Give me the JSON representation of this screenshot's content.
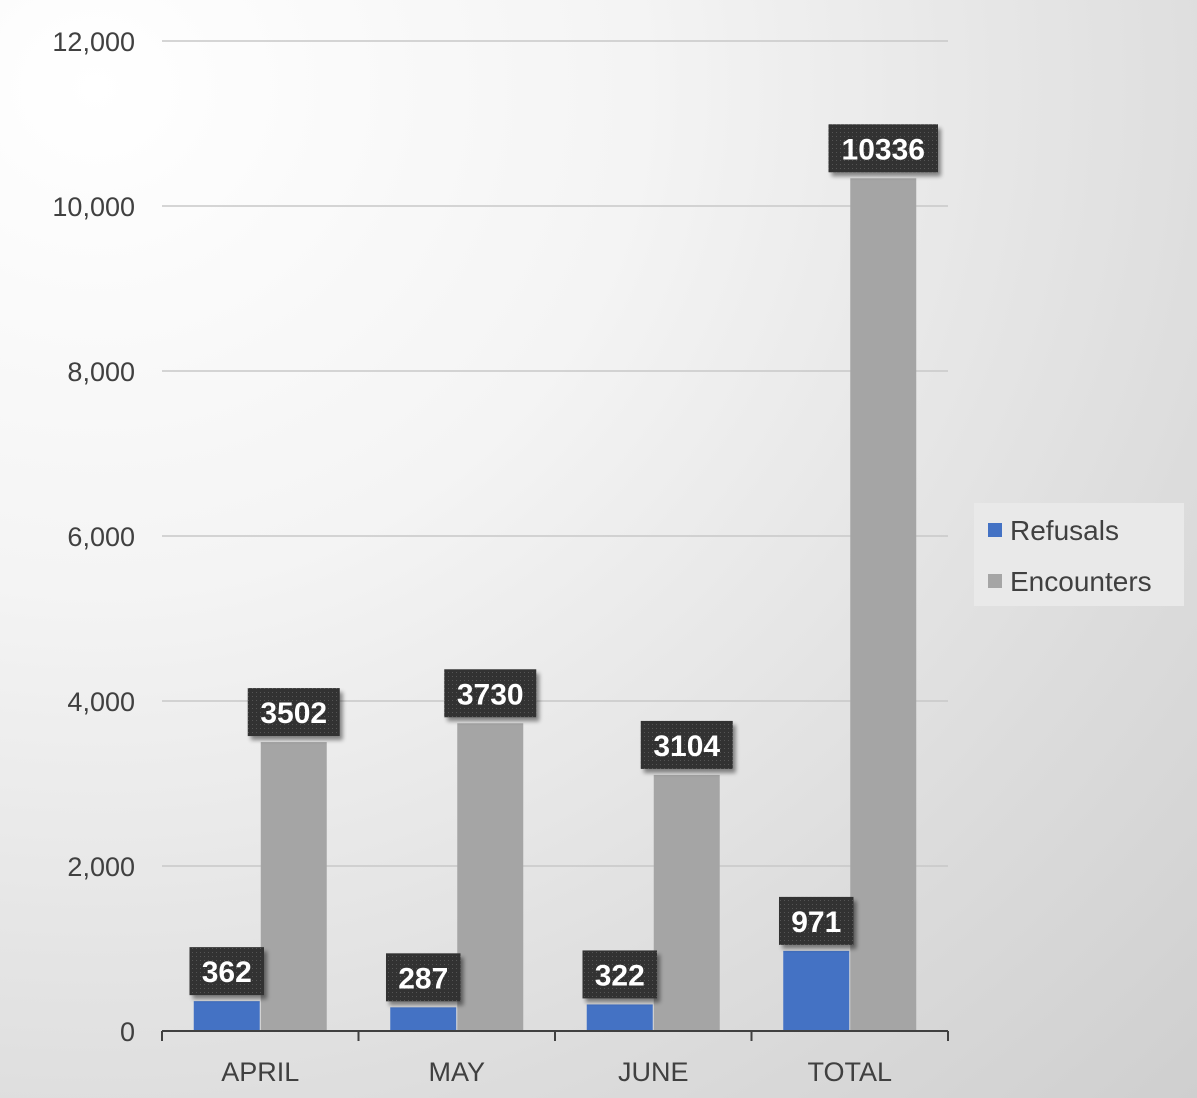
{
  "chart_data": {
    "type": "bar",
    "categories": [
      "APRIL",
      "MAY",
      "JUNE",
      "TOTAL"
    ],
    "series": [
      {
        "name": "Refusals",
        "values": [
          362,
          287,
          322,
          971
        ],
        "color": "#4472C4"
      },
      {
        "name": "Encounters",
        "values": [
          3502,
          3730,
          3104,
          10336
        ],
        "color": "#A5A5A5"
      }
    ],
    "ylim": [
      0,
      12000
    ],
    "yticks": [
      0,
      2000,
      4000,
      6000,
      8000,
      10000,
      12000
    ],
    "ytick_labels": [
      "0",
      "2,000",
      "4,000",
      "6,000",
      "8,000",
      "10,000",
      "12,000"
    ],
    "grid": true,
    "legend": "right",
    "data_labels": true,
    "data_label_background": "#333333"
  }
}
